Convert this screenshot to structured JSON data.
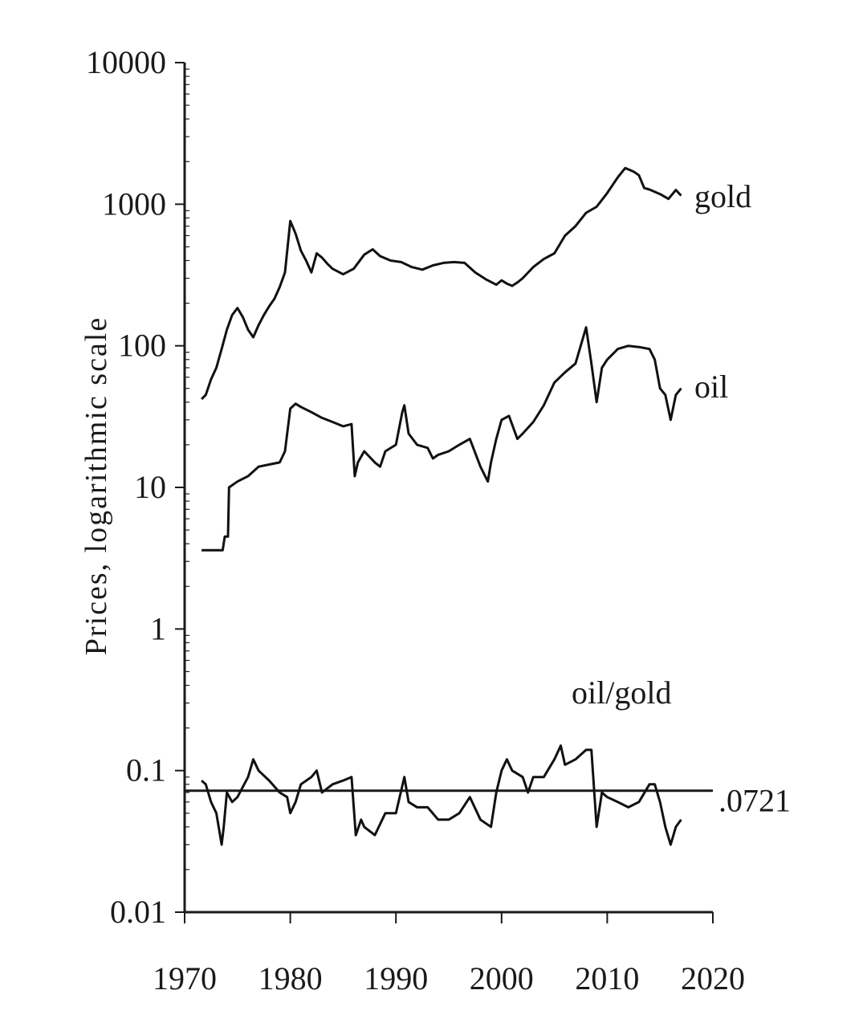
{
  "chart_data": {
    "type": "line",
    "title": "",
    "xlabel": "",
    "ylabel": "Prices, logarithmic scale",
    "yscale": "log",
    "xlim": [
      1970,
      2020
    ],
    "ylim": [
      0.01,
      10000
    ],
    "xticks": [
      "1970",
      "1980",
      "1990",
      "2000",
      "2010",
      "2020"
    ],
    "yticks": [
      "10000",
      "1000",
      "100",
      "10",
      "1",
      "0.1",
      "0.01"
    ],
    "grid": false,
    "colors": {
      "line": "#111111",
      "axis": "#1a1a1a",
      "background": "#ffffff"
    },
    "series": [
      {
        "name": "gold",
        "label": "gold",
        "x": [
          1971.6,
          1972.0,
          1972.5,
          1973.0,
          1973.5,
          1974.0,
          1974.5,
          1975.0,
          1975.5,
          1976.0,
          1976.5,
          1977.0,
          1977.5,
          1978.0,
          1978.5,
          1979.0,
          1979.5,
          1980.0,
          1980.5,
          1981.0,
          1981.5,
          1982.0,
          1982.5,
          1983.0,
          1983.5,
          1984.0,
          1985.0,
          1986.0,
          1987.0,
          1987.8,
          1988.5,
          1989.5,
          1990.5,
          1991.5,
          1992.5,
          1993.5,
          1994.5,
          1995.5,
          1996.5,
          1997.5,
          1998.5,
          1999.5,
          2000.0,
          2000.5,
          2001.0,
          2001.5,
          2002.0,
          2003.0,
          2004.0,
          2005.0,
          2006.0,
          2007.0,
          2008.0,
          2009.0,
          2010.0,
          2011.0,
          2011.7,
          2012.5,
          2013.0,
          2013.5,
          2014.0,
          2015.0,
          2015.8,
          2016.5,
          2017.0
        ],
        "y": [
          42,
          45,
          58,
          70,
          95,
          130,
          165,
          185,
          160,
          130,
          115,
          140,
          165,
          190,
          215,
          260,
          330,
          760,
          620,
          470,
          400,
          330,
          450,
          420,
          380,
          350,
          320,
          350,
          440,
          480,
          430,
          400,
          390,
          360,
          345,
          370,
          385,
          390,
          385,
          330,
          295,
          270,
          290,
          275,
          265,
          280,
          300,
          360,
          410,
          450,
          600,
          700,
          870,
          960,
          1200,
          1550,
          1800,
          1700,
          1600,
          1300,
          1270,
          1180,
          1090,
          1260,
          1150
        ]
      },
      {
        "name": "oil",
        "label": "oil",
        "x": [
          1971.6,
          1973.6,
          1973.8,
          1974.1,
          1974.2,
          1975.0,
          1975.5,
          1976.0,
          1977.0,
          1978.0,
          1979.0,
          1979.5,
          1980.0,
          1980.5,
          1981.0,
          1982.0,
          1983.0,
          1984.0,
          1985.0,
          1985.8,
          1986.1,
          1986.4,
          1987.0,
          1988.0,
          1988.5,
          1989.0,
          1990.0,
          1990.6,
          1990.8,
          1991.2,
          1992.0,
          1993.0,
          1993.5,
          1994.0,
          1995.0,
          1996.0,
          1997.0,
          1998.0,
          1998.7,
          1999.0,
          1999.5,
          2000.0,
          2000.7,
          2001.5,
          2002.0,
          2003.0,
          2004.0,
          2005.0,
          2006.0,
          2007.0,
          2008.0,
          2008.5,
          2009.0,
          2009.5,
          2010.0,
          2011.0,
          2012.0,
          2013.0,
          2014.0,
          2014.5,
          2015.0,
          2015.5,
          2016.0,
          2016.5,
          2017.0
        ],
        "y": [
          3.6,
          3.6,
          4.5,
          4.5,
          10,
          11,
          11.5,
          12,
          14,
          14.5,
          15,
          18,
          36,
          39,
          37,
          34,
          31,
          29,
          27,
          28,
          12,
          15,
          18,
          15,
          14,
          18,
          20,
          34,
          38,
          24,
          20,
          19,
          16,
          17,
          18,
          20,
          22,
          14,
          11,
          15,
          22,
          30,
          32,
          22,
          24,
          29,
          38,
          55,
          65,
          75,
          135,
          75,
          40,
          70,
          80,
          95,
          100,
          98,
          95,
          80,
          50,
          45,
          30,
          45,
          50
        ]
      },
      {
        "name": "oil/gold",
        "label": "oil/gold",
        "x": [
          1971.6,
          1972.0,
          1972.5,
          1973.0,
          1973.5,
          1973.7,
          1974.0,
          1974.5,
          1975.0,
          1976.0,
          1976.5,
          1977.0,
          1978.0,
          1979.0,
          1979.7,
          1980.0,
          1980.5,
          1981.0,
          1982.0,
          1982.5,
          1983.0,
          1984.0,
          1985.0,
          1985.8,
          1986.2,
          1986.7,
          1987.0,
          1988.0,
          1989.0,
          1990.0,
          1990.8,
          1991.2,
          1992.0,
          1993.0,
          1994.0,
          1995.0,
          1996.0,
          1997.0,
          1998.0,
          1999.0,
          1999.5,
          2000.0,
          2000.5,
          2001.0,
          2002.0,
          2002.5,
          2003.0,
          2004.0,
          2005.0,
          2005.6,
          2006.0,
          2007.0,
          2008.0,
          2008.5,
          2009.0,
          2009.5,
          2010.0,
          2011.0,
          2012.0,
          2013.0,
          2014.0,
          2014.5,
          2015.0,
          2015.5,
          2016.0,
          2016.5,
          2017.0
        ],
        "y": [
          0.085,
          0.08,
          0.06,
          0.05,
          0.03,
          0.04,
          0.07,
          0.06,
          0.065,
          0.09,
          0.12,
          0.1,
          0.085,
          0.07,
          0.065,
          0.05,
          0.06,
          0.08,
          0.09,
          0.1,
          0.07,
          0.08,
          0.085,
          0.09,
          0.035,
          0.045,
          0.04,
          0.035,
          0.05,
          0.05,
          0.09,
          0.06,
          0.055,
          0.055,
          0.045,
          0.045,
          0.05,
          0.065,
          0.045,
          0.04,
          0.07,
          0.1,
          0.12,
          0.1,
          0.09,
          0.07,
          0.09,
          0.09,
          0.12,
          0.15,
          0.11,
          0.12,
          0.14,
          0.14,
          0.04,
          0.07,
          0.065,
          0.06,
          0.055,
          0.06,
          0.08,
          0.08,
          0.06,
          0.04,
          0.03,
          0.04,
          0.045
        ]
      }
    ],
    "reference_line": {
      "y": 0.0721,
      "label": ".0721"
    }
  }
}
